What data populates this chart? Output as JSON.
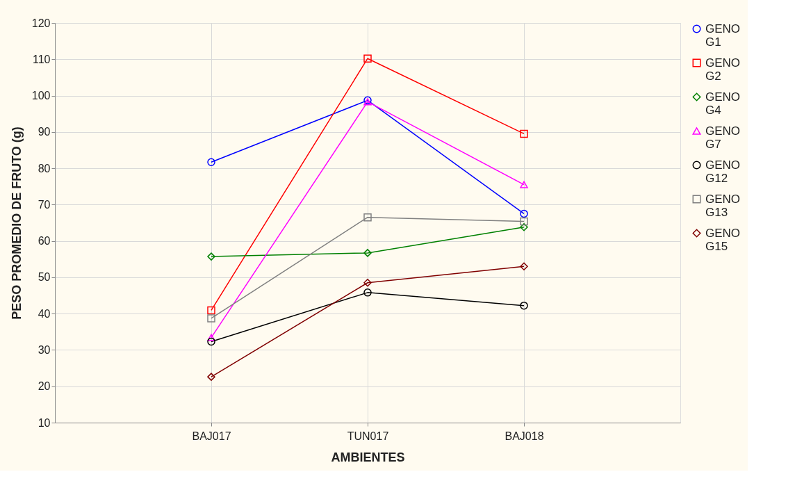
{
  "chart_data": {
    "type": "line",
    "xlabel": "AMBIENTES",
    "ylabel": "PESO PROMEDIO DE FRUTO (g)",
    "categories": [
      "BAJ017",
      "TUN017",
      "BAJ018"
    ],
    "ylim": [
      10,
      120
    ],
    "yticks": [
      10,
      20,
      30,
      40,
      50,
      60,
      70,
      80,
      90,
      100,
      110,
      120
    ],
    "grid": true,
    "legend": "right",
    "line_style": "solid",
    "series": [
      {
        "name": "GENO G1",
        "color": "#0000ff",
        "marker": "circle",
        "values": [
          81.7,
          98.7,
          67.5
        ]
      },
      {
        "name": "GENO G2",
        "color": "#ff0000",
        "marker": "square",
        "values": [
          40.9,
          110.2,
          89.5
        ]
      },
      {
        "name": "GENO G4",
        "color": "#008000",
        "marker": "diamond",
        "values": [
          55.7,
          56.7,
          63.8
        ]
      },
      {
        "name": "GENO G7",
        "color": "#ff00ff",
        "marker": "triangle",
        "values": [
          33.4,
          98.3,
          75.5
        ]
      },
      {
        "name": "GENO G12",
        "color": "#000000",
        "marker": "circle",
        "values": [
          32.3,
          45.8,
          42.2
        ]
      },
      {
        "name": "GENO G13",
        "color": "#808080",
        "marker": "square",
        "values": [
          38.7,
          66.5,
          65.4
        ]
      },
      {
        "name": "GENO G15",
        "color": "#800000",
        "marker": "diamond",
        "values": [
          22.6,
          48.5,
          53.0
        ]
      }
    ]
  }
}
